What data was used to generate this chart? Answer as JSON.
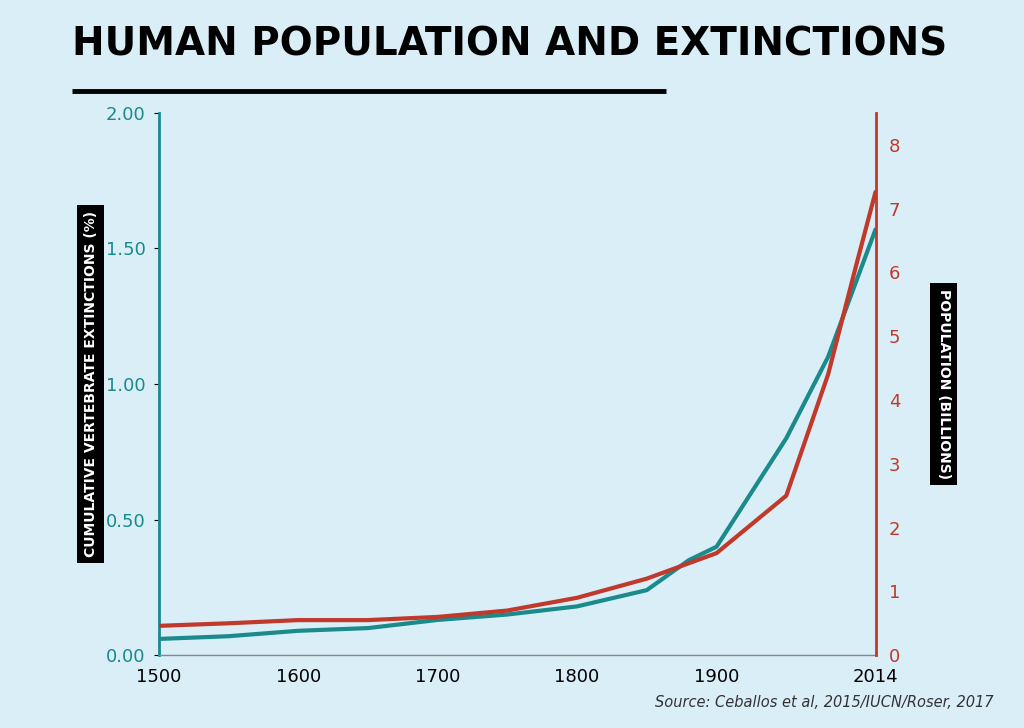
{
  "title": "HUMAN POPULATION AND EXTINCTIONS",
  "background_color": "#daeef8",
  "source_text": "Source: Ceballos et al, 2015/IUCN/Roser, 2017",
  "extinctions_years": [
    1500,
    1550,
    1600,
    1650,
    1700,
    1750,
    1800,
    1850,
    1880,
    1900,
    1950,
    1980,
    2014
  ],
  "extinctions_values": [
    0.06,
    0.07,
    0.09,
    0.1,
    0.13,
    0.15,
    0.18,
    0.24,
    0.35,
    0.4,
    0.8,
    1.1,
    1.57
  ],
  "population_years": [
    1500,
    1550,
    1600,
    1650,
    1700,
    1750,
    1800,
    1850,
    1900,
    1950,
    1980,
    2000,
    2014
  ],
  "population_values": [
    0.46,
    0.5,
    0.55,
    0.55,
    0.6,
    0.7,
    0.9,
    1.2,
    1.6,
    2.5,
    4.4,
    6.1,
    7.26
  ],
  "extinction_color": "#1a8a8a",
  "population_color": "#c0392b",
  "left_ylabel": "CUMULATIVE VERTEBRATE EXTINCTIONS (%)",
  "right_ylabel": "POPULATION (BILLIONS)",
  "left_ylim": [
    0,
    2.0
  ],
  "right_ylim": [
    0,
    8.5
  ],
  "left_yticks": [
    0.0,
    0.5,
    1.0,
    1.5,
    2.0
  ],
  "right_yticks": [
    0,
    1,
    2,
    3,
    4,
    5,
    6,
    7,
    8
  ],
  "xlim": [
    1500,
    2014
  ],
  "xticks": [
    1500,
    1600,
    1700,
    1800,
    1900,
    2014
  ]
}
